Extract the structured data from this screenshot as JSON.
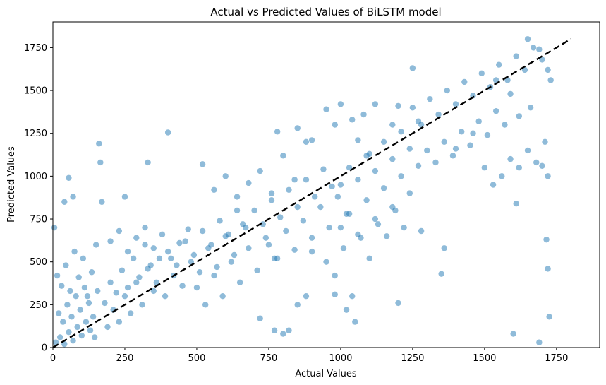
{
  "chart_data": {
    "type": "scatter",
    "title": "Actual vs Predicted Values of BiLSTM model",
    "xlabel": "Actual Values",
    "ylabel": "Predicted Values",
    "xlim": [
      0,
      1900
    ],
    "ylim": [
      0,
      1900
    ],
    "xticks": [
      0,
      250,
      500,
      750,
      1000,
      1250,
      1500,
      1750
    ],
    "yticks": [
      0,
      250,
      500,
      750,
      1000,
      1250,
      1500,
      1750
    ],
    "grid": false,
    "legend": "none",
    "point_color": "#1f77b4",
    "point_alpha": 0.5,
    "reference_line": {
      "style": "dashed",
      "color": "#000000",
      "from": [
        0,
        0
      ],
      "to": [
        1800,
        1800
      ]
    },
    "series": [
      {
        "values": [
          [
            10,
            30
          ],
          [
            25,
            60
          ],
          [
            40,
            20
          ],
          [
            55,
            90
          ],
          [
            70,
            40
          ],
          [
            85,
            120
          ],
          [
            100,
            70
          ],
          [
            115,
            150
          ],
          [
            130,
            100
          ],
          [
            145,
            60
          ],
          [
            20,
            200
          ],
          [
            35,
            150
          ],
          [
            50,
            250
          ],
          [
            65,
            180
          ],
          [
            80,
            300
          ],
          [
            95,
            220
          ],
          [
            110,
            350
          ],
          [
            125,
            260
          ],
          [
            140,
            180
          ],
          [
            155,
            330
          ],
          [
            15,
            420
          ],
          [
            30,
            360
          ],
          [
            45,
            480
          ],
          [
            60,
            330
          ],
          [
            75,
            560
          ],
          [
            90,
            410
          ],
          [
            105,
            520
          ],
          [
            120,
            300
          ],
          [
            135,
            440
          ],
          [
            150,
            600
          ],
          [
            5,
            700
          ],
          [
            40,
            850
          ],
          [
            55,
            990
          ],
          [
            70,
            880
          ],
          [
            160,
            1190
          ],
          [
            165,
            1080
          ],
          [
            330,
            1080
          ],
          [
            400,
            1255
          ],
          [
            250,
            880
          ],
          [
            170,
            850
          ],
          [
            180,
            260
          ],
          [
            200,
            380
          ],
          [
            220,
            320
          ],
          [
            240,
            450
          ],
          [
            260,
            350
          ],
          [
            280,
            520
          ],
          [
            300,
            410
          ],
          [
            320,
            600
          ],
          [
            340,
            480
          ],
          [
            360,
            380
          ],
          [
            190,
            120
          ],
          [
            210,
            220
          ],
          [
            230,
            150
          ],
          [
            250,
            300
          ],
          [
            270,
            200
          ],
          [
            290,
            380
          ],
          [
            310,
            250
          ],
          [
            330,
            460
          ],
          [
            350,
            330
          ],
          [
            370,
            520
          ],
          [
            200,
            620
          ],
          [
            230,
            680
          ],
          [
            260,
            560
          ],
          [
            290,
            640
          ],
          [
            320,
            700
          ],
          [
            350,
            580
          ],
          [
            380,
            660
          ],
          [
            410,
            520
          ],
          [
            440,
            610
          ],
          [
            470,
            690
          ],
          [
            390,
            300
          ],
          [
            420,
            420
          ],
          [
            450,
            360
          ],
          [
            480,
            500
          ],
          [
            510,
            440
          ],
          [
            540,
            580
          ],
          [
            570,
            470
          ],
          [
            600,
            650
          ],
          [
            630,
            540
          ],
          [
            660,
            720
          ],
          [
            400,
            560
          ],
          [
            430,
            480
          ],
          [
            460,
            620
          ],
          [
            490,
            540
          ],
          [
            520,
            680
          ],
          [
            550,
            600
          ],
          [
            580,
            740
          ],
          [
            610,
            660
          ],
          [
            640,
            800
          ],
          [
            670,
            700
          ],
          [
            500,
            350
          ],
          [
            530,
            250
          ],
          [
            560,
            420
          ],
          [
            590,
            300
          ],
          [
            620,
            500
          ],
          [
            650,
            380
          ],
          [
            680,
            580
          ],
          [
            710,
            450
          ],
          [
            740,
            640
          ],
          [
            770,
            520
          ],
          [
            520,
            1070
          ],
          [
            560,
            920
          ],
          [
            600,
            1000
          ],
          [
            640,
            880
          ],
          [
            680,
            960
          ],
          [
            720,
            1030
          ],
          [
            760,
            900
          ],
          [
            800,
            1120
          ],
          [
            840,
            980
          ],
          [
            880,
            1200
          ],
          [
            700,
            800
          ],
          [
            730,
            720
          ],
          [
            760,
            860
          ],
          [
            790,
            760
          ],
          [
            820,
            920
          ],
          [
            850,
            820
          ],
          [
            880,
            980
          ],
          [
            910,
            880
          ],
          [
            940,
            1040
          ],
          [
            970,
            940
          ],
          [
            750,
            600
          ],
          [
            780,
            520
          ],
          [
            810,
            680
          ],
          [
            840,
            570
          ],
          [
            870,
            740
          ],
          [
            900,
            640
          ],
          [
            930,
            820
          ],
          [
            960,
            700
          ],
          [
            990,
            880
          ],
          [
            1020,
            780
          ],
          [
            780,
            1260
          ],
          [
            850,
            1280
          ],
          [
            900,
            1210
          ],
          [
            950,
            1390
          ],
          [
            980,
            1300
          ],
          [
            1000,
            1420
          ],
          [
            1040,
            1330
          ],
          [
            1060,
            1210
          ],
          [
            1080,
            1360
          ],
          [
            1100,
            1130
          ],
          [
            1000,
            950
          ],
          [
            1030,
            1050
          ],
          [
            1060,
            980
          ],
          [
            1090,
            1120
          ],
          [
            1120,
            1030
          ],
          [
            1150,
            1200
          ],
          [
            1180,
            1100
          ],
          [
            1210,
            1260
          ],
          [
            1240,
            1160
          ],
          [
            1270,
            1320
          ],
          [
            1000,
            700
          ],
          [
            1030,
            780
          ],
          [
            1060,
            660
          ],
          [
            1090,
            860
          ],
          [
            1120,
            750
          ],
          [
            1150,
            930
          ],
          [
            1180,
            820
          ],
          [
            1210,
            1000
          ],
          [
            1240,
            900
          ],
          [
            1270,
            1060
          ],
          [
            950,
            500
          ],
          [
            980,
            420
          ],
          [
            1010,
            580
          ],
          [
            1040,
            300
          ],
          [
            1070,
            640
          ],
          [
            1100,
            520
          ],
          [
            1130,
            720
          ],
          [
            1160,
            650
          ],
          [
            1190,
            800
          ],
          [
            1220,
            700
          ],
          [
            1250,
            1400
          ],
          [
            1280,
            1300
          ],
          [
            1310,
            1450
          ],
          [
            1340,
            1360
          ],
          [
            1370,
            1500
          ],
          [
            1400,
            1420
          ],
          [
            1430,
            1550
          ],
          [
            1460,
            1470
          ],
          [
            1490,
            1600
          ],
          [
            1520,
            1520
          ],
          [
            1300,
            1150
          ],
          [
            1330,
            1080
          ],
          [
            1360,
            1200
          ],
          [
            1390,
            1120
          ],
          [
            1420,
            1260
          ],
          [
            1450,
            1180
          ],
          [
            1480,
            1320
          ],
          [
            1510,
            1240
          ],
          [
            1540,
            1380
          ],
          [
            1570,
            1300
          ],
          [
            1550,
            1650
          ],
          [
            1580,
            1560
          ],
          [
            1610,
            1700
          ],
          [
            1640,
            1620
          ],
          [
            1670,
            1750
          ],
          [
            1700,
            1680
          ],
          [
            1650,
            1800
          ],
          [
            1690,
            1740
          ],
          [
            1720,
            1620
          ],
          [
            1730,
            1560
          ],
          [
            1500,
            1050
          ],
          [
            1530,
            950
          ],
          [
            1560,
            1000
          ],
          [
            1590,
            1100
          ],
          [
            1620,
            1050
          ],
          [
            1650,
            1150
          ],
          [
            1680,
            1080
          ],
          [
            1710,
            1200
          ],
          [
            1720,
            1000
          ],
          [
            1700,
            1060
          ],
          [
            1600,
            80
          ],
          [
            1610,
            840
          ],
          [
            1690,
            30
          ],
          [
            1715,
            630
          ],
          [
            1720,
            460
          ],
          [
            1725,
            180
          ],
          [
            1200,
            260
          ],
          [
            1350,
            430
          ],
          [
            1360,
            580
          ],
          [
            1280,
            680
          ],
          [
            900,
            560
          ],
          [
            880,
            300
          ],
          [
            1050,
            150
          ],
          [
            1020,
            220
          ],
          [
            770,
            100
          ],
          [
            800,
            80
          ],
          [
            850,
            250
          ],
          [
            980,
            310
          ],
          [
            720,
            170
          ],
          [
            820,
            100
          ],
          [
            1250,
            1630
          ],
          [
            1200,
            1410
          ],
          [
            1180,
            1300
          ],
          [
            1120,
            1420
          ],
          [
            1400,
            1160
          ],
          [
            1460,
            1250
          ],
          [
            1540,
            1560
          ],
          [
            1590,
            1480
          ],
          [
            1620,
            1350
          ],
          [
            1660,
            1400
          ]
        ]
      }
    ]
  }
}
